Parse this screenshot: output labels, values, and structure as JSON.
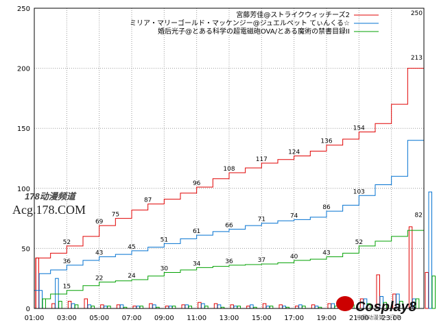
{
  "watermarks": {
    "top": "178动漫频道",
    "bottom": "Acg.178.COM",
    "right": "Cosplay8",
    "right_sub": "中国动漫第一门户"
  },
  "chart_data": {
    "type": "line",
    "ylim": [
      0,
      250
    ],
    "y_ticks": [
      "0",
      "50",
      "100",
      "150",
      "200",
      "250"
    ],
    "x_ticks": [
      "01:00",
      "03:00",
      "05:00",
      "07:00",
      "09:00",
      "11:00",
      "13:00",
      "15:00",
      "17:00",
      "19:00",
      "21:00",
      "23:00"
    ],
    "grid": true,
    "legend_position": "top-right",
    "series": [
      {
        "name": "宮藤芳佳@ストライクウィッチーズ2",
        "color": "#e00000",
        "points": [
          [
            0,
            0
          ],
          [
            0.1,
            42
          ],
          [
            1,
            46
          ],
          [
            2,
            52
          ],
          [
            3,
            60
          ],
          [
            4,
            69
          ],
          [
            5,
            75
          ],
          [
            6,
            82
          ],
          [
            7,
            87
          ],
          [
            8,
            91
          ],
          [
            9,
            96
          ],
          [
            10,
            101
          ],
          [
            11,
            108
          ],
          [
            12,
            113
          ],
          [
            13,
            117
          ],
          [
            14,
            121
          ],
          [
            15,
            124
          ],
          [
            16,
            127
          ],
          [
            17,
            131
          ],
          [
            18,
            136
          ],
          [
            19,
            141
          ],
          [
            20,
            147
          ],
          [
            21,
            154
          ],
          [
            22,
            170
          ],
          [
            23,
            200
          ],
          [
            24,
            250
          ]
        ],
        "labels": [
          [
            2,
            "52"
          ],
          [
            4,
            "69"
          ],
          [
            5,
            "75"
          ],
          [
            7,
            "87"
          ],
          [
            10,
            "96"
          ],
          [
            12,
            "108"
          ],
          [
            14,
            "117"
          ],
          [
            16,
            "124"
          ],
          [
            18,
            "136"
          ],
          [
            20,
            "154"
          ],
          [
            22,
            "250"
          ]
        ],
        "bars": [
          42,
          4,
          6,
          8,
          3,
          3,
          2,
          4,
          2,
          3,
          5,
          4,
          3,
          2,
          4,
          3,
          2,
          3,
          4,
          5,
          8,
          28,
          12,
          68,
          30
        ]
      },
      {
        "name": "ミリア・マリーゴールド・マッケンジー@ジュエルペット てぃんくる☆",
        "color": "#0070d0",
        "points": [
          [
            0,
            15
          ],
          [
            0.3,
            29
          ],
          [
            1,
            32
          ],
          [
            2,
            36
          ],
          [
            3,
            40
          ],
          [
            4,
            43
          ],
          [
            5,
            45
          ],
          [
            6,
            48
          ],
          [
            7,
            51
          ],
          [
            8,
            54
          ],
          [
            9,
            58
          ],
          [
            10,
            61
          ],
          [
            11,
            64
          ],
          [
            12,
            66
          ],
          [
            13,
            69
          ],
          [
            14,
            71
          ],
          [
            15,
            73
          ],
          [
            16,
            74
          ],
          [
            17,
            76
          ],
          [
            18,
            81
          ],
          [
            19,
            86
          ],
          [
            20,
            94
          ],
          [
            21,
            103
          ],
          [
            22,
            110
          ],
          [
            23,
            140
          ],
          [
            24,
            213
          ]
        ],
        "labels": [
          [
            2,
            "36"
          ],
          [
            4,
            "43"
          ],
          [
            6,
            "45"
          ],
          [
            8,
            "51"
          ],
          [
            10,
            "61"
          ],
          [
            12,
            "66"
          ],
          [
            14,
            "71"
          ],
          [
            16,
            "74"
          ],
          [
            18,
            "86"
          ],
          [
            20,
            "103"
          ],
          [
            22,
            "213"
          ]
        ],
        "bars": [
          15,
          25,
          4,
          3,
          2,
          3,
          2,
          3,
          2,
          3,
          4,
          3,
          2,
          3,
          2,
          2,
          3,
          2,
          4,
          6,
          8,
          10,
          12,
          8,
          97
        ]
      },
      {
        "name": "婚后光子@とある科学の超電磁砲OVA/とある魔術の禁書目録II",
        "color": "#00a000",
        "points": [
          [
            0,
            0
          ],
          [
            0.5,
            8
          ],
          [
            1,
            12
          ],
          [
            2,
            15
          ],
          [
            3,
            19
          ],
          [
            4,
            22
          ],
          [
            5,
            23
          ],
          [
            6,
            24
          ],
          [
            7,
            27
          ],
          [
            8,
            30
          ],
          [
            9,
            32
          ],
          [
            10,
            34
          ],
          [
            11,
            35
          ],
          [
            12,
            36
          ],
          [
            13,
            36.5
          ],
          [
            14,
            37
          ],
          [
            15,
            38
          ],
          [
            16,
            40
          ],
          [
            17,
            41
          ],
          [
            18,
            43
          ],
          [
            19,
            46
          ],
          [
            20,
            52
          ],
          [
            21,
            56
          ],
          [
            22,
            60
          ],
          [
            23,
            65
          ],
          [
            24,
            82
          ]
        ],
        "labels": [
          [
            2,
            "15"
          ],
          [
            4,
            "22"
          ],
          [
            6,
            "24"
          ],
          [
            8,
            "30"
          ],
          [
            10,
            "34"
          ],
          [
            12,
            "36"
          ],
          [
            14,
            "37"
          ],
          [
            16,
            "40"
          ],
          [
            18,
            "43"
          ],
          [
            20,
            "52"
          ],
          [
            22,
            "82"
          ]
        ],
        "bars": [
          8,
          6,
          3,
          2,
          2,
          1,
          2,
          1,
          2,
          2,
          2,
          1,
          2,
          1,
          2,
          1,
          2,
          1,
          2,
          3,
          4,
          5,
          6,
          8,
          27
        ]
      }
    ]
  }
}
